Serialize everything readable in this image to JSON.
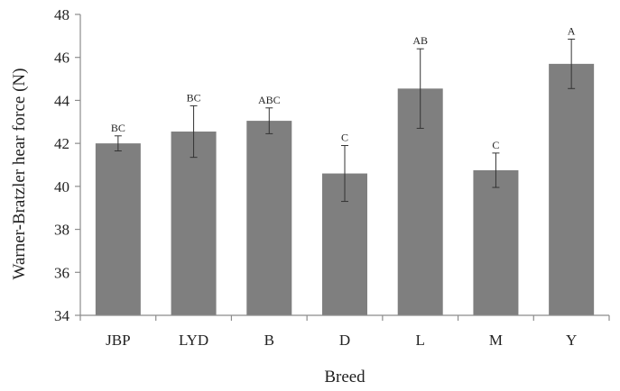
{
  "chart_data": {
    "type": "bar",
    "title": "",
    "xlabel": "Breed",
    "ylabel": "Warner-Bratzler hear force (N)",
    "ylim": [
      34,
      48
    ],
    "yticks": [
      "34",
      "36",
      "38",
      "40",
      "42",
      "44",
      "46",
      "48"
    ],
    "categories": [
      "JBP",
      "LYD",
      "B",
      "D",
      "L",
      "M",
      "Y"
    ],
    "values": [
      42.0,
      42.55,
      43.05,
      40.6,
      44.55,
      40.75,
      45.7
    ],
    "errors": [
      0.35,
      1.2,
      0.6,
      1.3,
      1.85,
      0.8,
      1.15
    ],
    "significance": [
      "BC",
      "BC",
      "ABC",
      "C",
      "AB",
      "C",
      "A"
    ],
    "grid": false,
    "legend": "none",
    "colors": {
      "bar": "#7f7f7f",
      "axis": "#8c8c8c",
      "error": "#333333",
      "text": "#222222"
    }
  }
}
